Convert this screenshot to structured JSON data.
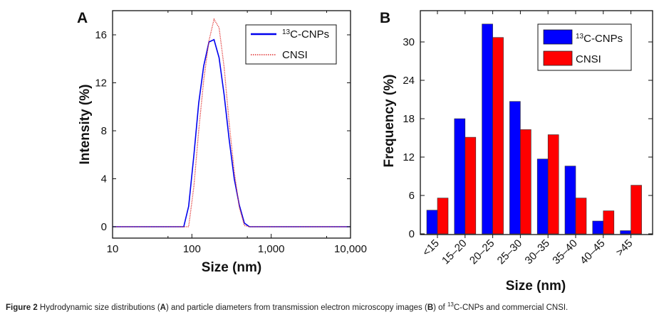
{
  "chart_data": [
    {
      "type": "line",
      "panel": "A",
      "title": "",
      "xlabel": "Size (nm)",
      "ylabel": "Intensity (%)",
      "xscale": "log",
      "xlim": [
        10,
        10000
      ],
      "ylim": [
        -1,
        17.8
      ],
      "xticks": [
        10,
        100,
        1000,
        10000
      ],
      "xtick_labels": [
        "10",
        "100",
        "1,000",
        "10,000"
      ],
      "yticks": [
        0,
        4,
        8,
        12,
        16
      ],
      "ytick_labels": [
        "0",
        "4",
        "8",
        "12",
        "16"
      ],
      "legend_position": "top-right",
      "series": [
        {
          "name": "13C-CNPs",
          "legend_sup": "13",
          "legend_main": "C-CNPs",
          "color": "#0000ee",
          "style": "solid",
          "x": [
            10,
            79,
            91,
            106,
            122,
            141,
            164,
            190,
            220,
            255,
            295,
            342,
            396,
            459,
            531,
            615,
            10000
          ],
          "y": [
            0,
            0,
            1.7,
            6.0,
            10.3,
            13.4,
            15.4,
            15.6,
            14.1,
            11.0,
            7.3,
            4.0,
            1.8,
            0.3,
            0,
            0,
            0
          ]
        },
        {
          "name": "CNSI",
          "legend_main": "CNSI",
          "color": "#e03030",
          "style": "dotted",
          "x": [
            10,
            91,
            106,
            122,
            141,
            164,
            190,
            220,
            255,
            295,
            342,
            396,
            459,
            531,
            10000
          ],
          "y": [
            0,
            0,
            3.4,
            8.0,
            12.2,
            15.5,
            17.3,
            16.6,
            13.3,
            8.7,
            4.6,
            1.6,
            0.1,
            0,
            0
          ]
        }
      ]
    },
    {
      "type": "bar",
      "panel": "B",
      "title": "",
      "xlabel": "Size (nm)",
      "ylabel": "Frequency (%)",
      "ylim": [
        0,
        34.5
      ],
      "yticks": [
        0,
        6,
        12,
        18,
        24,
        30
      ],
      "ytick_labels": [
        "0",
        "6",
        "12",
        "18",
        "24",
        "30"
      ],
      "categories": [
        "<15",
        "15–20",
        "20–25",
        "25–30",
        "30–35",
        "35–40",
        "40–45",
        ">45"
      ],
      "legend_position": "top-right",
      "series": [
        {
          "name": "13C-CNPs",
          "legend_sup": "13",
          "legend_main": "C-CNPs",
          "color": "#0000ff",
          "values": [
            3.7,
            18.0,
            32.8,
            20.7,
            11.7,
            10.6,
            2.0,
            0.5
          ]
        },
        {
          "name": "CNSI",
          "legend_main": "CNSI",
          "color": "#ff0000",
          "values": [
            5.6,
            15.1,
            30.7,
            16.3,
            15.5,
            5.6,
            3.6,
            7.6
          ]
        }
      ]
    }
  ],
  "panels": {
    "a_letter": "A",
    "b_letter": "B"
  },
  "caption": {
    "prefix": "Figure 2",
    "t1": " Hydrodynamic size distributions (",
    "a": "A",
    "t2": ") and particle diameters from transmission electron microscopy images (",
    "b": "B",
    "t3": ") of ",
    "sup": "13",
    "t4": "C-CNPs and commercial CNSI."
  }
}
